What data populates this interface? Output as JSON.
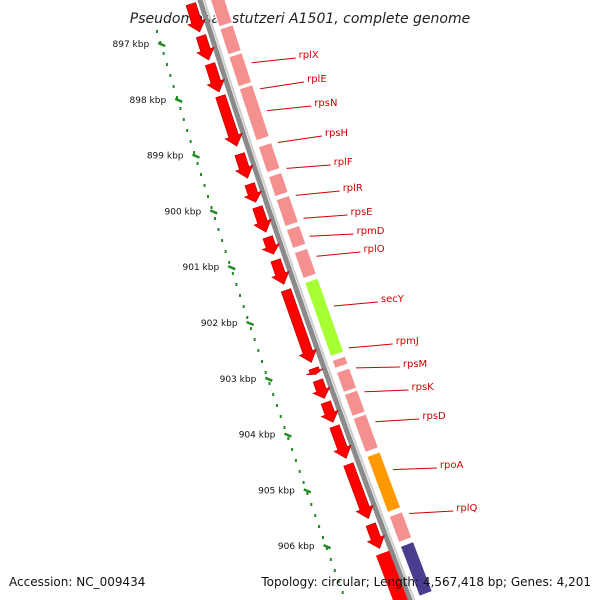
{
  "title": "Pseudomonas stutzeri A1501, complete genome",
  "accession": "Accession: NC_009434",
  "topology": "Topology: circular; Length: 4,567,418 bp; Genes: 4,201",
  "ticks": [
    {
      "label": "897 kbp"
    },
    {
      "label": "898 kbp"
    },
    {
      "label": "899 kbp"
    },
    {
      "label": "900 kbp"
    },
    {
      "label": "901 kbp"
    },
    {
      "label": "902 kbp"
    },
    {
      "label": "903 kbp"
    },
    {
      "label": "904 kbp"
    },
    {
      "label": "905 kbp"
    },
    {
      "label": "906 kbp"
    }
  ],
  "genes": [
    {
      "name": "rplX"
    },
    {
      "name": "rplE"
    },
    {
      "name": "rpsN"
    },
    {
      "name": "rpsH"
    },
    {
      "name": "rplF"
    },
    {
      "name": "rplR"
    },
    {
      "name": "rpsE"
    },
    {
      "name": "rpmD"
    },
    {
      "name": "rplO"
    },
    {
      "name": "secY"
    },
    {
      "name": "rpmJ"
    },
    {
      "name": "rpsM"
    },
    {
      "name": "rpsK"
    },
    {
      "name": "rpsD"
    },
    {
      "name": "rpoA"
    },
    {
      "name": "rplQ"
    }
  ],
  "colors": {
    "cds": "#ff0000",
    "gene": "#f59090",
    "secY": "#a6ff33",
    "rpoA": "#ff9900",
    "purple": "#4a3d8f",
    "backbone": "#8a8a8a",
    "tick": "#228b22",
    "label": "#d10000"
  }
}
